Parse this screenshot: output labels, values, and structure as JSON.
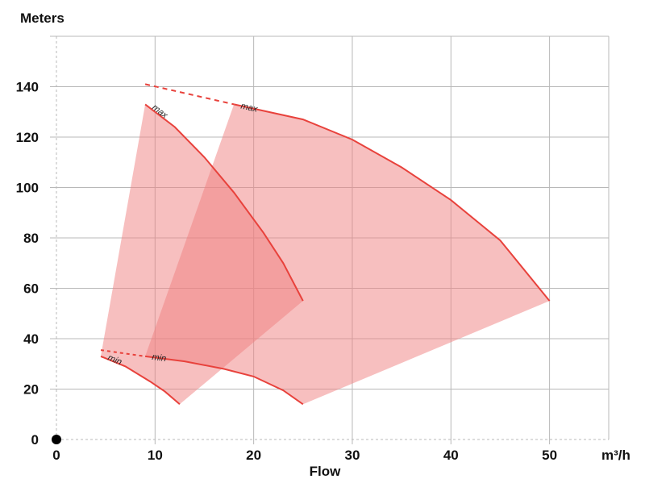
{
  "chart_data": {
    "type": "area",
    "ylabel": "Meters",
    "xlabel": "Flow",
    "x_unit": "m³/h",
    "xlim": [
      0,
      56
    ],
    "ylim": [
      0,
      160
    ],
    "x_ticks": [
      0,
      10,
      20,
      30,
      40,
      50
    ],
    "y_ticks": [
      0,
      20,
      40,
      60,
      80,
      100,
      120,
      140
    ],
    "grid": true,
    "colors": {
      "fill": "#f08080",
      "curve": "#e8423c",
      "origin": "#000000"
    },
    "regions": [
      {
        "max_curve": [
          [
            9,
            133
          ],
          [
            12,
            124
          ],
          [
            15,
            112
          ],
          [
            18,
            98
          ],
          [
            21,
            82
          ],
          [
            23,
            70
          ],
          [
            25,
            55
          ]
        ],
        "max_dashed": [
          [
            9,
            141
          ],
          [
            18,
            133
          ]
        ],
        "max_label": "max",
        "min_curve": [
          [
            4.5,
            33
          ],
          [
            7,
            29
          ],
          [
            9.5,
            23
          ],
          [
            11,
            19
          ],
          [
            12.5,
            14
          ]
        ],
        "min_dashed": [
          [
            4.5,
            35.5
          ],
          [
            9,
            33
          ]
        ],
        "min_label": "min"
      },
      {
        "max_curve": [
          [
            18,
            133
          ],
          [
            25,
            127
          ],
          [
            30,
            119
          ],
          [
            35,
            108
          ],
          [
            40,
            95
          ],
          [
            45,
            79
          ],
          [
            50,
            55
          ]
        ],
        "max_label": "max",
        "min_curve": [
          [
            9,
            33
          ],
          [
            13,
            31
          ],
          [
            17,
            28
          ],
          [
            20,
            25
          ],
          [
            23,
            19.5
          ],
          [
            25,
            14
          ]
        ],
        "min_label": "min"
      }
    ]
  }
}
